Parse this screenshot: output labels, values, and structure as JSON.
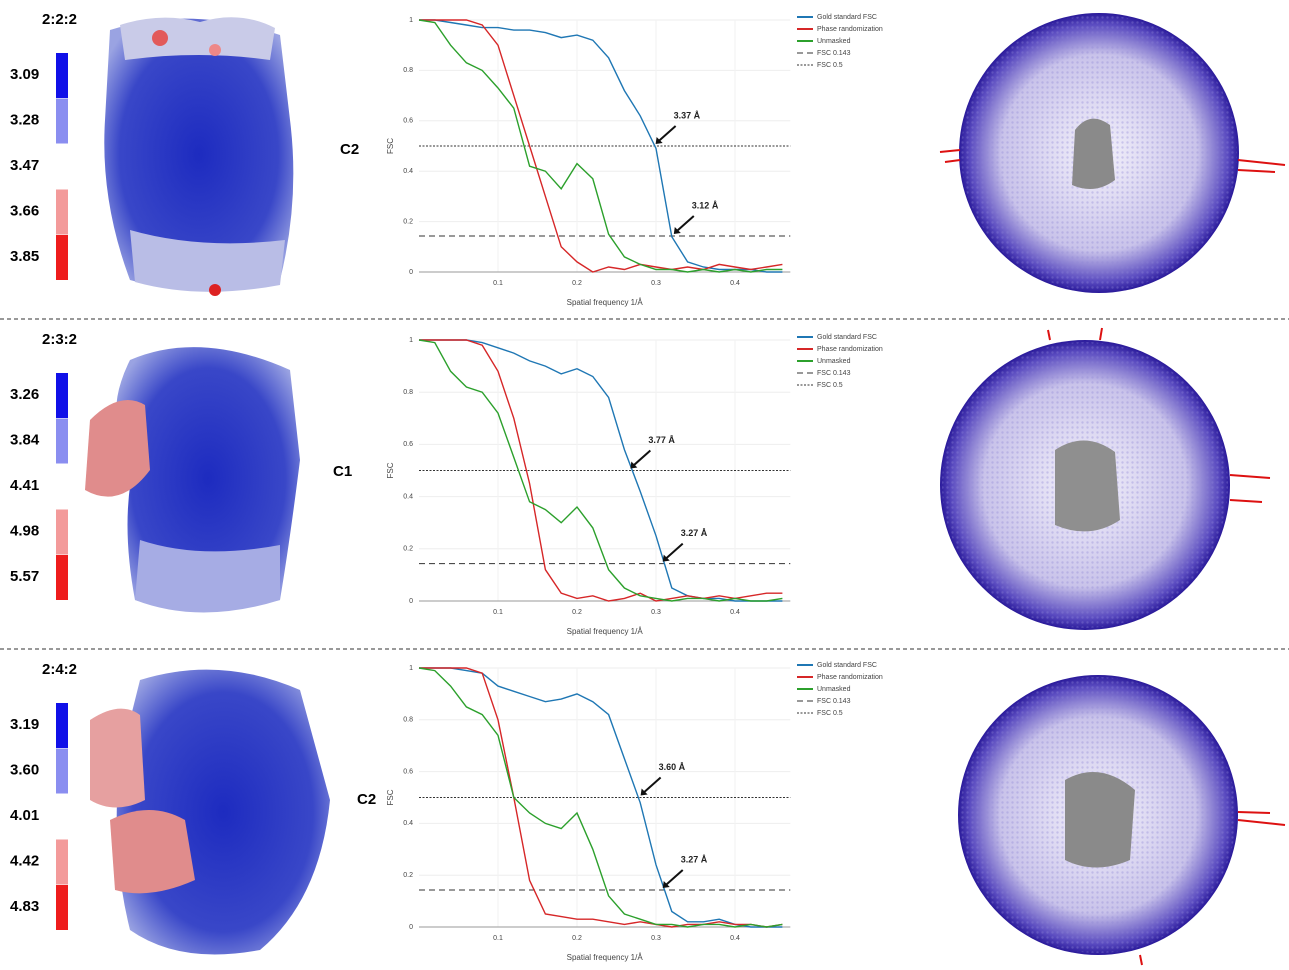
{
  "panels": [
    {
      "label": "2:2:2",
      "scale": [
        "3.09",
        "3.28",
        "3.47",
        "3.66",
        "3.85"
      ],
      "symmetry": "C2"
    },
    {
      "label": "2:3:2",
      "scale": [
        "3.26",
        "3.84",
        "4.41",
        "4.98",
        "5.57"
      ],
      "symmetry": "C1"
    },
    {
      "label": "2:4:2",
      "scale": [
        "3.19",
        "3.60",
        "4.01",
        "4.42",
        "4.83"
      ],
      "symmetry": "C2"
    }
  ],
  "chart_data": [
    {
      "type": "line",
      "xlabel": "Spatial frequency 1/Å",
      "ylabel": "FSC",
      "xlim": [
        0,
        0.47
      ],
      "ylim": [
        0,
        1
      ],
      "xticks": [
        0.1,
        0.2,
        0.3,
        0.4
      ],
      "yticks": [
        0,
        0.2,
        0.4,
        0.6,
        0.8,
        1
      ],
      "x": [
        0,
        0.02,
        0.04,
        0.06,
        0.08,
        0.1,
        0.12,
        0.14,
        0.16,
        0.18,
        0.2,
        0.22,
        0.24,
        0.26,
        0.28,
        0.3,
        0.32,
        0.34,
        0.36,
        0.38,
        0.4,
        0.42,
        0.44,
        0.46
      ],
      "series": [
        {
          "name": "Gold standard FSC",
          "color": "#1f77b4",
          "values": [
            1,
            1,
            0.99,
            0.98,
            0.97,
            0.97,
            0.96,
            0.96,
            0.95,
            0.93,
            0.94,
            0.92,
            0.85,
            0.72,
            0.62,
            0.49,
            0.14,
            0.04,
            0.02,
            0.01,
            0.01,
            0.01,
            0,
            0
          ]
        },
        {
          "name": "Phase randomization",
          "color": "#d62728",
          "values": [
            1,
            1,
            1,
            1,
            0.98,
            0.9,
            0.7,
            0.5,
            0.3,
            0.1,
            0.04,
            0,
            0.02,
            0.01,
            0.03,
            0.02,
            0.01,
            0.02,
            0.01,
            0.03,
            0.02,
            0.01,
            0.02,
            0.03
          ]
        },
        {
          "name": "Unmasked",
          "color": "#2ca02c",
          "values": [
            1,
            0.99,
            0.9,
            0.83,
            0.8,
            0.73,
            0.65,
            0.42,
            0.4,
            0.33,
            0.43,
            0.37,
            0.15,
            0.06,
            0.03,
            0.01,
            0.01,
            0,
            0.01,
            0,
            0.01,
            0,
            0.01,
            0.01
          ]
        }
      ],
      "thresholds": [
        {
          "name": "FSC 0.143",
          "value": 0.143,
          "style": "dashed"
        },
        {
          "name": "FSC 0.5",
          "value": 0.5,
          "style": "dotted"
        }
      ],
      "annotations": [
        {
          "text": "3.37 Å",
          "x": 0.297,
          "y": 0.5
        },
        {
          "text": "3.12 Å",
          "x": 0.32,
          "y": 0.143
        }
      ]
    },
    {
      "type": "line",
      "xlabel": "Spatial frequency 1/Å",
      "ylabel": "FSC",
      "xlim": [
        0,
        0.47
      ],
      "ylim": [
        0,
        1
      ],
      "xticks": [
        0.1,
        0.2,
        0.3,
        0.4
      ],
      "yticks": [
        0,
        0.2,
        0.4,
        0.6,
        0.8,
        1
      ],
      "x": [
        0,
        0.02,
        0.04,
        0.06,
        0.08,
        0.1,
        0.12,
        0.14,
        0.16,
        0.18,
        0.2,
        0.22,
        0.24,
        0.26,
        0.28,
        0.3,
        0.32,
        0.34,
        0.36,
        0.38,
        0.4,
        0.42,
        0.44,
        0.46
      ],
      "series": [
        {
          "name": "Gold standard FSC",
          "color": "#1f77b4",
          "values": [
            1,
            1,
            1,
            1,
            0.99,
            0.97,
            0.95,
            0.92,
            0.9,
            0.87,
            0.89,
            0.86,
            0.78,
            0.58,
            0.42,
            0.25,
            0.05,
            0.02,
            0.01,
            0.01,
            0,
            0,
            0,
            0
          ]
        },
        {
          "name": "Phase randomization",
          "color": "#d62728",
          "values": [
            1,
            1,
            1,
            1,
            0.98,
            0.88,
            0.7,
            0.45,
            0.12,
            0.03,
            0.01,
            0.02,
            0,
            0.01,
            0.03,
            0,
            0.01,
            0.02,
            0.01,
            0.02,
            0.01,
            0.02,
            0.03,
            0.03
          ]
        },
        {
          "name": "Unmasked",
          "color": "#2ca02c",
          "values": [
            1,
            0.99,
            0.88,
            0.82,
            0.8,
            0.72,
            0.55,
            0.38,
            0.35,
            0.3,
            0.36,
            0.28,
            0.12,
            0.05,
            0.02,
            0.01,
            0,
            0.01,
            0.01,
            0,
            0.01,
            0,
            0,
            0.01
          ]
        }
      ],
      "thresholds": [
        {
          "name": "FSC 0.143",
          "value": 0.143,
          "style": "dashed"
        },
        {
          "name": "FSC 0.5",
          "value": 0.5,
          "style": "dotted"
        }
      ],
      "annotations": [
        {
          "text": "3.77 Å",
          "x": 0.265,
          "y": 0.5
        },
        {
          "text": "3.27 Å",
          "x": 0.306,
          "y": 0.143
        }
      ]
    },
    {
      "type": "line",
      "xlabel": "Spatial frequency 1/Å",
      "ylabel": "FSC",
      "xlim": [
        0,
        0.47
      ],
      "ylim": [
        0,
        1
      ],
      "xticks": [
        0.1,
        0.2,
        0.3,
        0.4
      ],
      "yticks": [
        0,
        0.2,
        0.4,
        0.6,
        0.8,
        1
      ],
      "x": [
        0,
        0.02,
        0.04,
        0.06,
        0.08,
        0.1,
        0.12,
        0.14,
        0.16,
        0.18,
        0.2,
        0.22,
        0.24,
        0.26,
        0.28,
        0.3,
        0.32,
        0.34,
        0.36,
        0.38,
        0.4,
        0.42,
        0.44,
        0.46
      ],
      "series": [
        {
          "name": "Gold standard FSC",
          "color": "#1f77b4",
          "values": [
            1,
            1,
            1,
            0.99,
            0.98,
            0.93,
            0.91,
            0.89,
            0.87,
            0.88,
            0.9,
            0.87,
            0.82,
            0.65,
            0.48,
            0.24,
            0.06,
            0.02,
            0.02,
            0.03,
            0.01,
            0,
            0,
            0
          ]
        },
        {
          "name": "Phase randomization",
          "color": "#d62728",
          "values": [
            1,
            1,
            1,
            1,
            0.98,
            0.8,
            0.5,
            0.18,
            0.05,
            0.04,
            0.03,
            0.03,
            0.02,
            0.01,
            0.02,
            0.01,
            0,
            0.01,
            0.01,
            0.02,
            0.01,
            0.01,
            0,
            0.01
          ]
        },
        {
          "name": "Unmasked",
          "color": "#2ca02c",
          "values": [
            1,
            0.99,
            0.93,
            0.85,
            0.82,
            0.74,
            0.5,
            0.44,
            0.4,
            0.38,
            0.44,
            0.3,
            0.12,
            0.05,
            0.03,
            0.01,
            0.01,
            0,
            0.01,
            0.01,
            0,
            0.01,
            0,
            0.01
          ]
        }
      ],
      "thresholds": [
        {
          "name": "FSC 0.143",
          "value": 0.143,
          "style": "dashed"
        },
        {
          "name": "FSC 0.5",
          "value": 0.5,
          "style": "dotted"
        }
      ],
      "annotations": [
        {
          "text": "3.60 Å",
          "x": 0.278,
          "y": 0.5
        },
        {
          "text": "3.27 Å",
          "x": 0.306,
          "y": 0.143
        }
      ]
    }
  ]
}
